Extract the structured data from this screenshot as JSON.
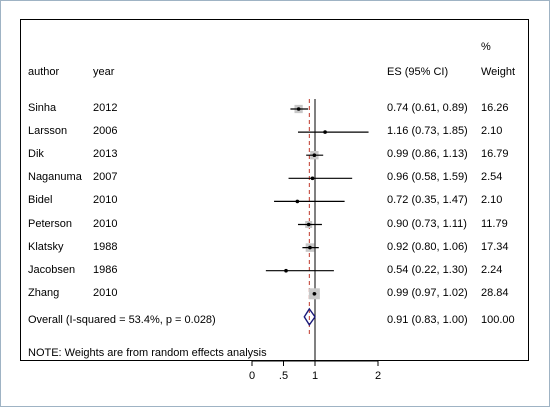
{
  "chart_data": {
    "type": "forest",
    "headers": {
      "author": "author",
      "year": "year",
      "es": "ES (95% CI)",
      "weight_top": "%",
      "weight": "Weight"
    },
    "studies": [
      {
        "author": "Sinha",
        "year": "2012",
        "es": 0.74,
        "lo": 0.61,
        "hi": 0.89,
        "es_text": "0.74 (0.61, 0.89)",
        "weight": "16.26"
      },
      {
        "author": "Larsson",
        "year": "2006",
        "es": 1.16,
        "lo": 0.73,
        "hi": 1.85,
        "es_text": "1.16 (0.73, 1.85)",
        "weight": "2.10"
      },
      {
        "author": "Dik",
        "year": "2013",
        "es": 0.99,
        "lo": 0.86,
        "hi": 1.13,
        "es_text": "0.99 (0.86, 1.13)",
        "weight": "16.79"
      },
      {
        "author": "Naganuma",
        "year": "2007",
        "es": 0.96,
        "lo": 0.58,
        "hi": 1.59,
        "es_text": "0.96 (0.58, 1.59)",
        "weight": "2.54"
      },
      {
        "author": "Bidel",
        "year": "2010",
        "es": 0.72,
        "lo": 0.35,
        "hi": 1.47,
        "es_text": "0.72 (0.35, 1.47)",
        "weight": "2.10"
      },
      {
        "author": "Peterson",
        "year": "2010",
        "es": 0.9,
        "lo": 0.73,
        "hi": 1.11,
        "es_text": "0.90 (0.73, 1.11)",
        "weight": "11.79"
      },
      {
        "author": "Klatsky",
        "year": "1988",
        "es": 0.92,
        "lo": 0.8,
        "hi": 1.06,
        "es_text": "0.92 (0.80, 1.06)",
        "weight": "17.34"
      },
      {
        "author": "Jacobsen",
        "year": "1986",
        "es": 0.54,
        "lo": 0.22,
        "hi": 1.3,
        "es_text": "0.54 (0.22, 1.30)",
        "weight": "2.24"
      },
      {
        "author": "Zhang",
        "year": "2010",
        "es": 0.99,
        "lo": 0.97,
        "hi": 1.02,
        "es_text": "0.99 (0.97, 1.02)",
        "weight": "28.84"
      }
    ],
    "overall": {
      "label": "Overall  (I-squared = 53.4%, p = 0.028)",
      "es": 0.91,
      "lo": 0.83,
      "hi": 1.0,
      "es_text": "0.91 (0.83, 1.00)",
      "weight": "100.00"
    },
    "note": "NOTE: Weights are from random effects analysis",
    "x_ticks": [
      {
        "value": 0,
        "label": "0"
      },
      {
        "value": 0.5,
        "label": ".5"
      },
      {
        "value": 1,
        "label": "1"
      },
      {
        "value": 2,
        "label": "2"
      }
    ],
    "null_line": 1,
    "colors": {
      "weight_box": "#c8c8c8",
      "diamond": "#1a1a7a",
      "overall_line": "#c0392b",
      "frame_border": "#9fb3c4"
    }
  }
}
